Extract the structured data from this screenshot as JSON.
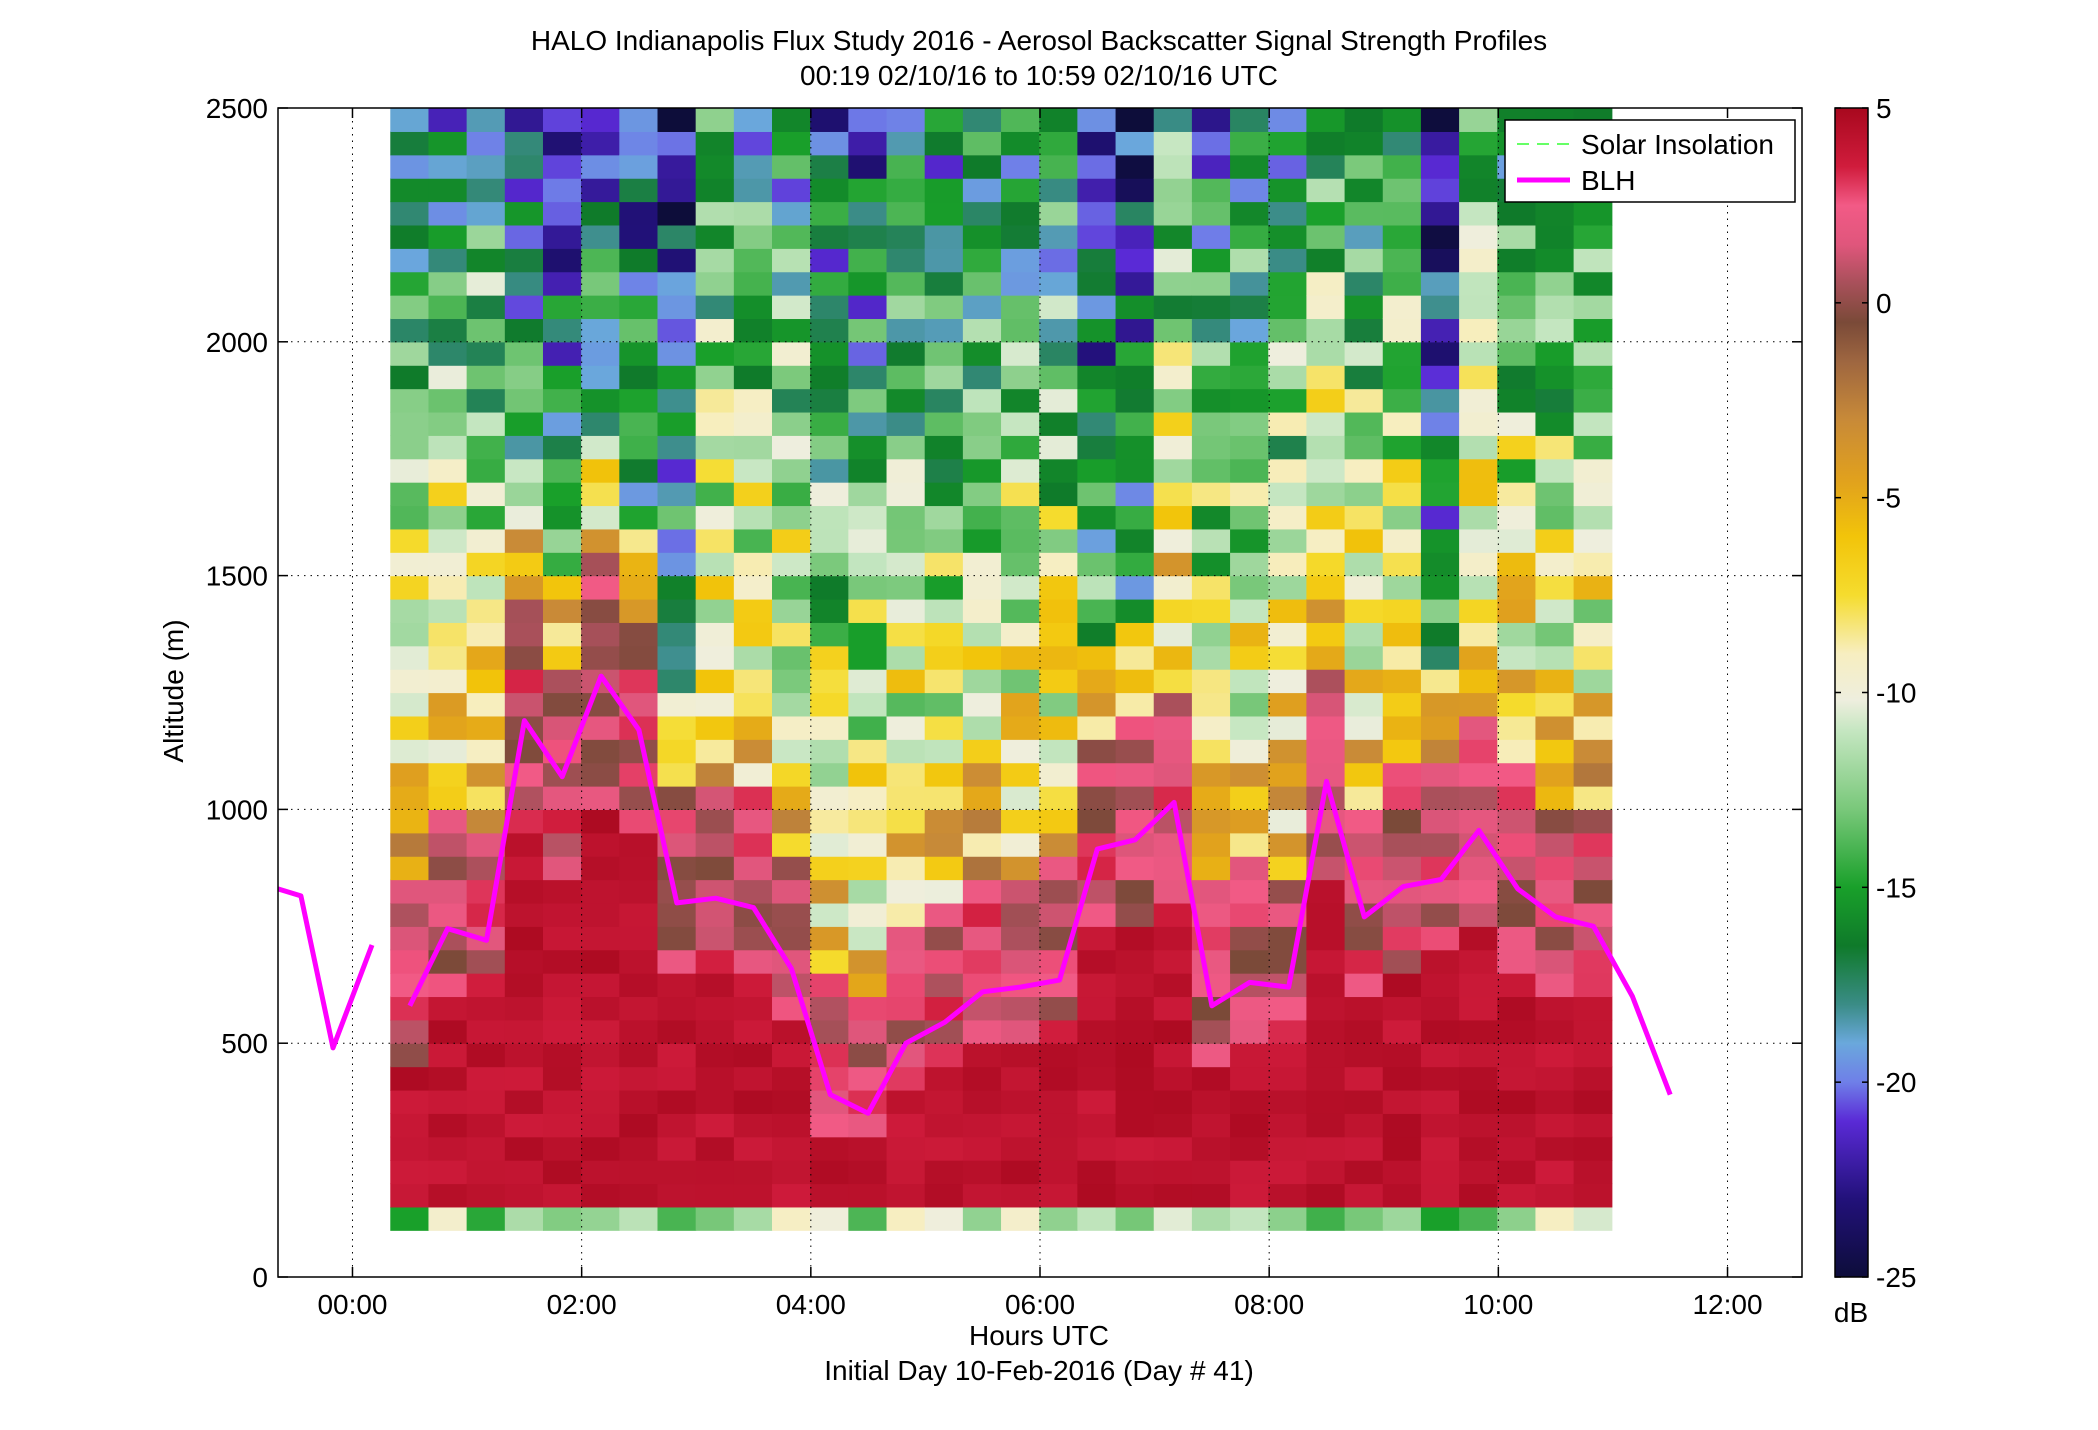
{
  "chart_data": {
    "type": "heatmap",
    "title": "HALO Indianapolis Flux Study 2016 - Aerosol Backscatter Signal Strength Profiles",
    "subtitle": "00:19 02/10/16 to 10:59 02/10/16  UTC",
    "xlabel": "Hours UTC",
    "xlabel2": "Initial Day 10-Feb-2016 (Day # 41)",
    "ylabel": "Altitude (m)",
    "xlim": [
      -0.65,
      12.65
    ],
    "ylim": [
      0,
      2500
    ],
    "xticks": [
      0,
      2,
      4,
      6,
      8,
      10,
      12
    ],
    "xtick_labels": [
      "00:00",
      "02:00",
      "04:00",
      "06:00",
      "08:00",
      "10:00",
      "12:00"
    ],
    "yticks": [
      0,
      500,
      1000,
      1500,
      2000,
      2500
    ],
    "ytick_labels": [
      "0",
      "500",
      "1000",
      "1500",
      "2000",
      "2500"
    ],
    "grid": true,
    "legend_position": "top-right",
    "legend": [
      "Solar Insolation",
      "BLH"
    ],
    "colorbar": {
      "min": -25,
      "max": 5,
      "ticks": [
        5,
        0,
        -5,
        -10,
        -15,
        -20,
        -25
      ],
      "tick_labels": [
        "5",
        "0",
        "-5",
        "-10",
        "-15",
        "-20",
        "-25"
      ],
      "unit_label": "dB"
    },
    "heatmap": {
      "x_start": 0.33,
      "x_end": 10.99,
      "y_start": 100,
      "y_end": 2500,
      "n_cols": 32,
      "row_height_m": 50,
      "note_units": "values in dB"
    },
    "series": [
      {
        "name": "BLH",
        "color": "#ff00ff",
        "segments": [
          {
            "x": [
              -0.65,
              -0.45,
              -0.17,
              0.17
            ],
            "y": [
              830,
              815,
              490,
              710
            ]
          },
          {
            "x": [
              0.5,
              0.83,
              1.17,
              1.5,
              1.83,
              2.17,
              2.5,
              2.83,
              3.17,
              3.5,
              3.83,
              4.17,
              4.5,
              4.83,
              5.17,
              5.5,
              5.83,
              6.17,
              6.5,
              6.83,
              7.17,
              7.5,
              7.83,
              8.17,
              8.5,
              8.83,
              9.17,
              9.5,
              9.83,
              10.17,
              10.5,
              10.83,
              11.17,
              11.5
            ],
            "y": [
              580,
              745,
              720,
              1190,
              1070,
              1285,
              1170,
              800,
              810,
              790,
              660,
              390,
              350,
              500,
              545,
              610,
              620,
              635,
              915,
              935,
              1015,
              580,
              630,
              620,
              1060,
              770,
              835,
              850,
              955,
              830,
              770,
              750,
              600,
              390
            ]
          }
        ]
      },
      {
        "name": "Solar Insolation",
        "color": "#66ff66",
        "dashed": true,
        "values": []
      }
    ]
  }
}
